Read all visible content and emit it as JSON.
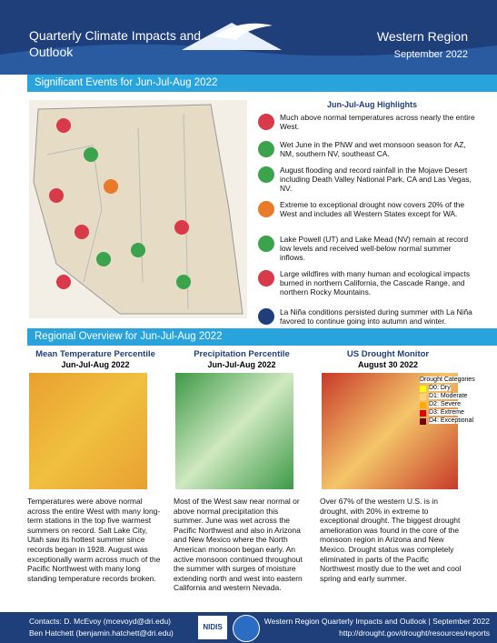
{
  "header": {
    "title": "Quarterly Climate Impacts and Outlook",
    "region": "Western Region",
    "date": "September 2022"
  },
  "significant_events": {
    "heading": "Significant Events for Jun-Jul-Aug 2022",
    "highlights_title": "Jun-Jul-Aug Highlights",
    "items": [
      "Much above normal temperatures across nearly the entire West.",
      "Wet June in the PNW and wet monsoon season for AZ, NM, southern NV, southeast CA.",
      "August flooding and record rainfall in the Mojave Desert including Death Valley National Park, CA and Las Vegas, NV.",
      "Extreme to exceptional drought now covers 20% of the West and includes all Western States except for WA.",
      "Lake Powell (UT) and Lake Mead (NV) remain at record low levels and received well-below normal summer inflows.",
      "Large wildfires with many human and ecological impacts burned in northern California, the Cascade Range, and northern Rocky Mountains.",
      "La Niña conditions persisted during summer with La Niña favored to continue going into autumn and winter."
    ]
  },
  "regional_overview": {
    "heading": "Regional Overview for Jun-Jul-Aug 2022",
    "panels": [
      {
        "title": "Mean Temperature Percentile",
        "subtitle": "Jun-Jul-Aug 2022",
        "text": "Temperatures were above normal across the entire West with many long-term stations in the top five warmest summers on record. Salt Lake City, Utah saw its hottest summer since records began in 1928. August was exceptionally warm across much of the Pacific Northwest with many long standing temperature records broken."
      },
      {
        "title": "Precipitation Percentile",
        "subtitle": "Jun-Jul-Aug 2022",
        "text": "Most of the West saw near normal or above normal precipitation this summer. June was wet across the Pacific Northwest and also in Arizona and New Mexico where the North American monsoon began early. An active monsoon continued throughout the summer with surges of moisture extending north and west into eastern California and western Nevada."
      },
      {
        "title": "US Drought Monitor",
        "subtitle": "August 30 2022",
        "text": "Over 67% of the western U.S. is in drought, with 20% in extreme to exceptional drought. The biggest drought amelioration was found in the core of the monsoon region in Arizona and New Mexico. Drought status was completely eliminated in parts of the Pacific Northwest mostly due to the wet and cool spring and early summer."
      }
    ],
    "drought_legend": {
      "title": "Drought Categories",
      "items": [
        "D0: Dry",
        "D1: Moderate",
        "D2: Severe",
        "D3: Extreme",
        "D4: Exceptional"
      ]
    }
  },
  "footer": {
    "contacts": [
      "Contacts: D. McEvoy (mcevoyd@dri.edu)",
      "Ben Hatchett (benjamin.hatchett@dri.edu)"
    ],
    "logo": "NIDIS",
    "report": "Western Region Quarterly Impacts and Outlook | September 2022",
    "url": "http://drought.gov/drought/resources/reports"
  }
}
